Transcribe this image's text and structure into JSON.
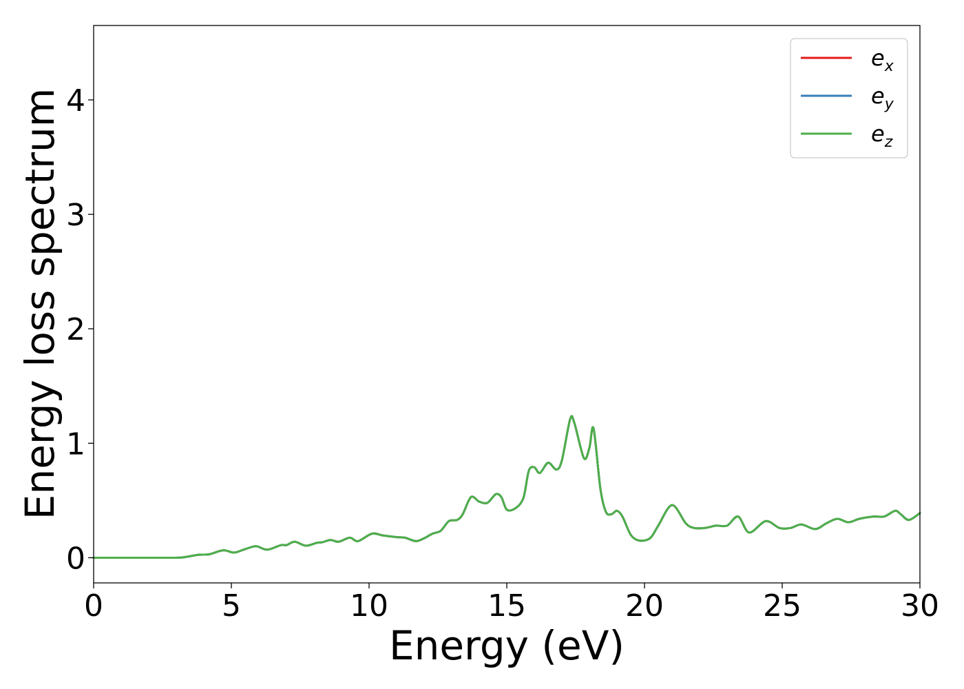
{
  "chart_data": {
    "type": "line",
    "title": "",
    "xlabel": "Energy (eV)",
    "ylabel": "Energy loss spectrum",
    "xlim": [
      0,
      30
    ],
    "ylim": [
      -0.22,
      4.65
    ],
    "xticks": [
      0,
      5,
      10,
      15,
      20,
      25,
      30
    ],
    "yticks": [
      0,
      1,
      2,
      3,
      4
    ],
    "grid": false,
    "legend_position": "top-right",
    "series": [
      {
        "name": "e_x",
        "label_base": "e",
        "label_sub": "x",
        "color": "#e41a1c"
      },
      {
        "name": "e_y",
        "label_base": "e",
        "label_sub": "y",
        "color": "#377eb8"
      },
      {
        "name": "e_z",
        "label_base": "e",
        "label_sub": "z",
        "color": "#4daf4a"
      }
    ],
    "x": [
      0,
      1,
      2,
      3,
      3.3,
      3.8,
      4.2,
      4.7,
      5.1,
      5.5,
      5.9,
      6.3,
      6.8,
      7.0,
      7.3,
      7.7,
      8.1,
      8.3,
      8.6,
      8.9,
      9.3,
      9.6,
      10.1,
      10.5,
      11.0,
      11.3,
      11.7,
      12.0,
      12.3,
      12.6,
      12.9,
      13.2,
      13.4,
      13.7,
      14.0,
      14.3,
      14.6,
      14.8,
      15.0,
      15.3,
      15.6,
      15.8,
      16.0,
      16.2,
      16.5,
      16.8,
      17.0,
      17.3,
      17.45,
      17.8,
      18.0,
      18.15,
      18.4,
      18.6,
      18.8,
      19.0,
      19.2,
      19.5,
      19.8,
      20.2,
      20.5,
      21.0,
      21.5,
      21.8,
      22.2,
      22.6,
      23.0,
      23.4,
      23.8,
      24.4,
      24.9,
      25.3,
      25.7,
      26.2,
      26.6,
      27.0,
      27.4,
      27.8,
      28.3,
      28.7,
      29.1,
      29.3,
      29.6,
      30.0
    ],
    "values_shared_by_all_series": [
      0,
      0,
      0,
      0,
      0.005,
      0.025,
      0.03,
      0.065,
      0.045,
      0.075,
      0.1,
      0.07,
      0.11,
      0.11,
      0.14,
      0.105,
      0.13,
      0.135,
      0.155,
      0.14,
      0.175,
      0.145,
      0.21,
      0.195,
      0.18,
      0.175,
      0.145,
      0.17,
      0.21,
      0.235,
      0.32,
      0.33,
      0.38,
      0.53,
      0.49,
      0.48,
      0.555,
      0.53,
      0.42,
      0.43,
      0.52,
      0.76,
      0.79,
      0.74,
      0.83,
      0.77,
      0.85,
      1.21,
      1.18,
      0.87,
      0.96,
      1.13,
      0.6,
      0.4,
      0.38,
      0.41,
      0.36,
      0.2,
      0.15,
      0.17,
      0.28,
      0.46,
      0.3,
      0.26,
      0.26,
      0.28,
      0.28,
      0.36,
      0.22,
      0.32,
      0.26,
      0.26,
      0.29,
      0.25,
      0.3,
      0.34,
      0.31,
      0.34,
      0.36,
      0.36,
      0.41,
      0.38,
      0.33,
      0.39
    ]
  }
}
